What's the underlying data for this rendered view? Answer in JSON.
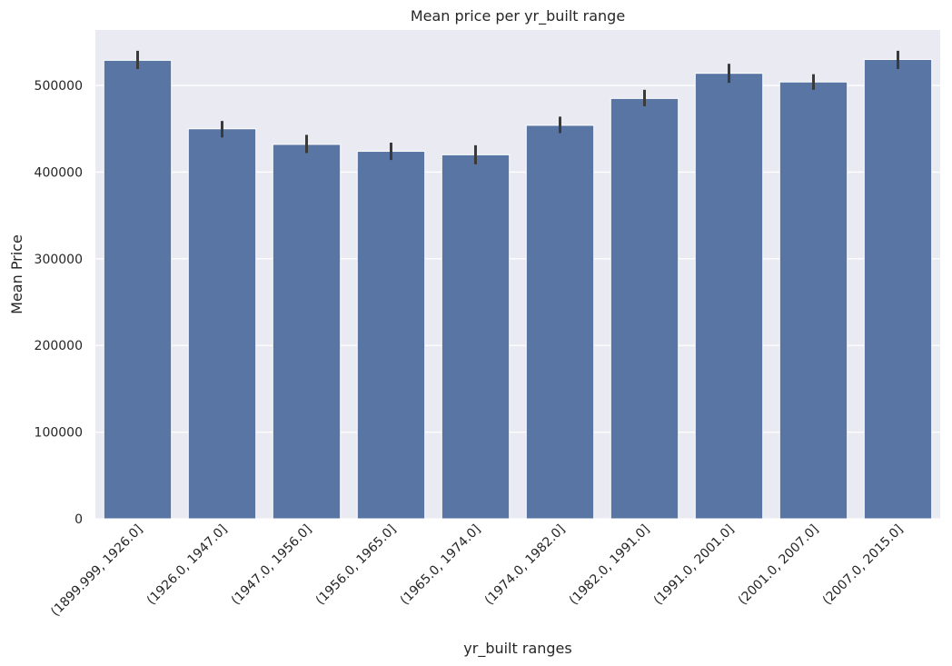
{
  "chart_data": {
    "type": "bar",
    "title": "Mean price per yr_built range",
    "xlabel": "yr_built ranges",
    "ylabel": "Mean Price",
    "categories": [
      "(1899.999, 1926.0]",
      "(1926.0, 1947.0]",
      "(1947.0, 1956.0]",
      "(1956.0, 1965.0]",
      "(1965.0, 1974.0]",
      "(1974.0, 1982.0]",
      "(1982.0, 1991.0]",
      "(1991.0, 2001.0]",
      "(2001.0, 2007.0]",
      "(2007.0, 2015.0]"
    ],
    "values": [
      529000,
      450000,
      432000,
      424000,
      420000,
      454000,
      485000,
      514000,
      504000,
      530000
    ],
    "error_low": [
      519000,
      440000,
      422000,
      414000,
      409000,
      445000,
      476000,
      503000,
      495000,
      519000
    ],
    "error_high": [
      540000,
      459000,
      443000,
      434000,
      431000,
      464000,
      495000,
      525000,
      513000,
      540000
    ],
    "yticks": [
      0,
      100000,
      200000,
      300000,
      400000,
      500000
    ],
    "ylim": [
      0,
      564000
    ],
    "grid": true,
    "colors": {
      "bar": "#5975a4",
      "background": "#eaeaf2",
      "grid": "#ffffff",
      "error": "#3a3a3a"
    }
  }
}
